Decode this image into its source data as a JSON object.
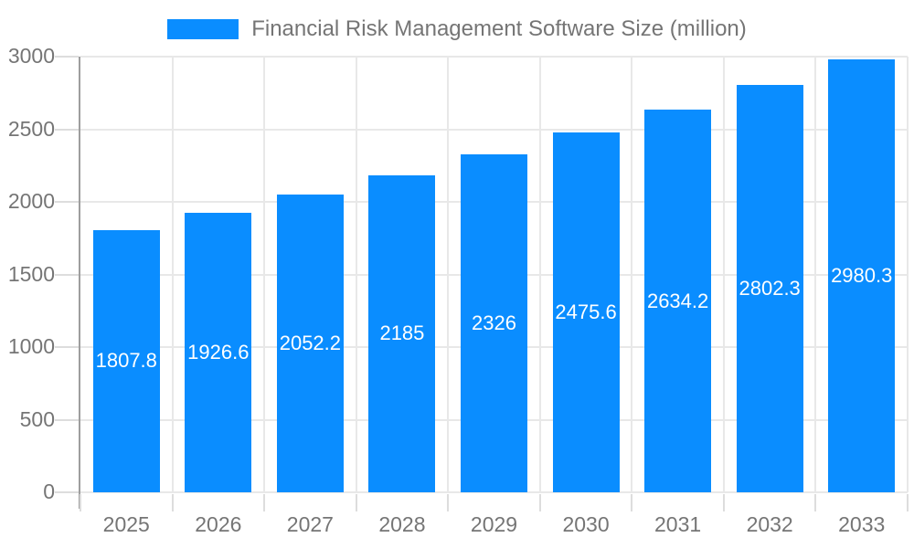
{
  "chart_data": {
    "type": "bar",
    "title": "Financial Risk Management Software Size (million)",
    "categories": [
      "2025",
      "2026",
      "2027",
      "2028",
      "2029",
      "2030",
      "2031",
      "2032",
      "2033"
    ],
    "values": [
      1807.8,
      1926.6,
      2052.2,
      2185,
      2326,
      2475.6,
      2634.2,
      2802.3,
      2980.3
    ],
    "xlabel": "",
    "ylabel": "",
    "ylim": [
      0,
      3000
    ],
    "ytick_interval": 500,
    "ytick_labels": [
      "0",
      "500",
      "1000",
      "1500",
      "2000",
      "2500",
      "3000"
    ],
    "grid": true,
    "legend_position": "top-center",
    "value_labels": [
      "1807.8",
      "1926.6",
      "2052.2",
      "2185",
      "2326",
      "2475.6",
      "2634.2",
      "2802.3",
      "2980.3"
    ],
    "colors": {
      "bar": "#0A8DFF",
      "value_label": "#FFFFFF",
      "axis_text": "#757575",
      "gridline": "#E8E8E8",
      "axis_line": "#9E9E9E",
      "tick": "#DDDDDD"
    }
  }
}
